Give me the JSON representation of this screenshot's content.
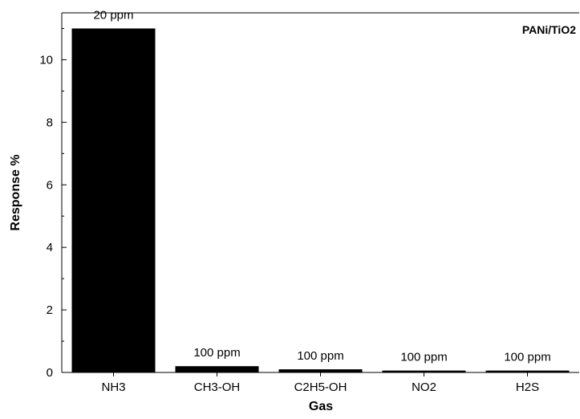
{
  "chart_data": {
    "type": "bar",
    "title": "",
    "legend": "PANi/TiO2",
    "legend_position": "top-right",
    "xlabel": "Gas",
    "ylabel": "Response %",
    "categories": [
      "NH3",
      "CH3-OH",
      "C2H5-OH",
      "NO2",
      "H2S"
    ],
    "values": [
      11.0,
      0.2,
      0.1,
      0.06,
      0.06
    ],
    "data_labels": [
      "20 ppm",
      "100 ppm",
      "100 ppm",
      "100 ppm",
      "100 ppm"
    ],
    "ylim": [
      0,
      11.5
    ],
    "yticks": [
      0,
      2,
      4,
      6,
      8,
      10
    ],
    "grid": false,
    "bar_color": "#000000"
  }
}
